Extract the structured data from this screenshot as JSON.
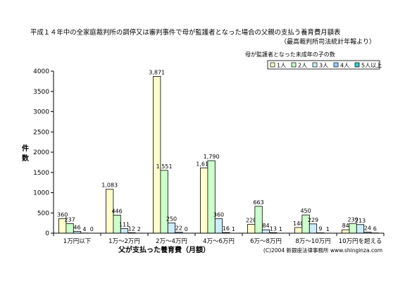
{
  "chart_data": {
    "type": "bar",
    "title": "平成１４年中の全家庭裁判所の調停又は審判事件で母が監護者となった場合の父親の支払う養育費月額表",
    "subtitle": "（最高裁判所司法統計年報より）",
    "xlabel": "父が支払った養育費（月額）",
    "ylabel": "件数",
    "legend_title": "母が監護者となった未成年の子の数",
    "legend_position": "top-right",
    "grid": false,
    "ylim": [
      0,
      4000
    ],
    "yticks": [
      "0",
      "500",
      "1000",
      "1500",
      "2000",
      "2500",
      "3000",
      "3500",
      "4000"
    ],
    "categories": [
      "1万円以下",
      "1万～2万円",
      "2万～4万円",
      "4万～6万円",
      "6万～8万円",
      "8万～10万円",
      "10万円を超える"
    ],
    "series": [
      {
        "name": "1人",
        "color": "#ffffcc",
        "values": [
          360,
          1083,
          3871,
          1613,
          220,
          140,
          84
        ]
      },
      {
        "name": "2人",
        "color": "#ccffcc",
        "values": [
          237,
          446,
          1551,
          1790,
          663,
          450,
          239
        ]
      },
      {
        "name": "3人",
        "color": "#ccecff",
        "values": [
          46,
          111,
          250,
          360,
          84,
          229,
          213
        ]
      },
      {
        "name": "4人",
        "color": "#99ccff",
        "values": [
          4,
          12,
          22,
          16,
          13,
          9,
          24
        ]
      },
      {
        "name": "5人以上",
        "color": "#33cccc",
        "values": [
          0,
          2,
          0,
          1,
          1,
          1,
          6
        ]
      }
    ],
    "data_labels": [
      [
        "360",
        "237",
        "46",
        "4",
        "0"
      ],
      [
        "1,083",
        "446",
        "111",
        "12",
        "2"
      ],
      [
        "3,871",
        "1,551",
        "250",
        "22",
        "0"
      ],
      [
        "1,613",
        "1,790",
        "360",
        "16",
        "1"
      ],
      [
        "220",
        "663",
        "84",
        "13",
        "1"
      ],
      [
        "140",
        "450",
        "229",
        "9",
        "1"
      ],
      [
        "84",
        "239",
        "213",
        "24",
        "6"
      ]
    ]
  },
  "copyright": "(C)2004 新銀座法律事務所 www.shinginza.com"
}
